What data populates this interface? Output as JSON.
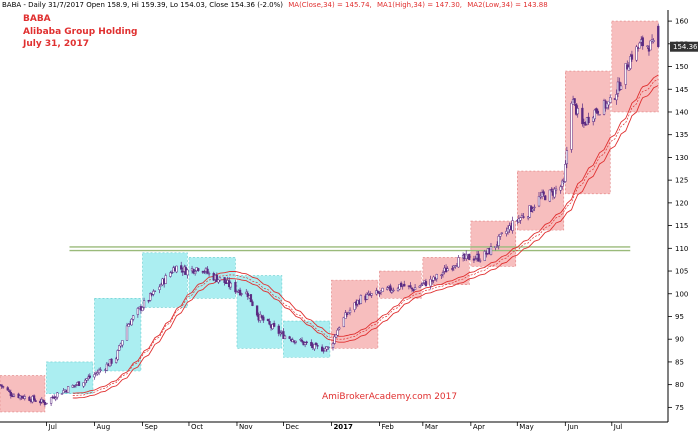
{
  "header": {
    "prefix": "BABA - Daily 31/7/2017 Open 158.9, Hi 159.39, Lo 154.03, Close 154.36 (-2.0%)",
    "ma_close": "MA(Close,34) = 145.74,",
    "ma_high": "MA1(High,34) = 147.30,",
    "ma_low": "MA2(Low,34) = 143.88"
  },
  "title_block": {
    "ticker": "BABA",
    "company": "Alibaba Group Holding",
    "date": "July 31, 2017"
  },
  "watermark": "AmiBrokerAcademy.com  2017",
  "last_price_label": "154.36",
  "colors": {
    "candle": "#5a2a82",
    "cyan_box": "#8fe8ec",
    "pink_box": "#f4a8a8",
    "ma_red": "#e03030",
    "resistance": "#9aba7a",
    "header_red": "#e03030"
  },
  "chart_data": {
    "type": "candlestick",
    "title": "BABA",
    "x_tick_labels": [
      "Jul",
      "Aug",
      "Sep",
      "Oct",
      "Nov",
      "Dec",
      "2017",
      "Feb",
      "Mar",
      "Apr",
      "May",
      "Jun",
      "Jul"
    ],
    "x_tick_dates": [
      "2016-07-01",
      "2016-08-01",
      "2016-09-01",
      "2016-10-01",
      "2016-11-01",
      "2016-12-01",
      "2017-01-01",
      "2017-02-01",
      "2017-03-01",
      "2017-04-01",
      "2017-05-01",
      "2017-06-01",
      "2017-07-01"
    ],
    "x_range": [
      "2016-06-01",
      "2017-08-05"
    ],
    "y_ticks": [
      75,
      80,
      85,
      90,
      95,
      100,
      105,
      110,
      115,
      120,
      125,
      130,
      135,
      140,
      145,
      150,
      155,
      160
    ],
    "ylim": [
      72,
      162
    ],
    "price_path": [
      [
        "2016-06-01",
        80
      ],
      [
        "2016-06-08",
        78
      ],
      [
        "2016-06-20",
        77
      ],
      [
        "2016-06-30",
        76
      ],
      [
        "2016-07-08",
        78
      ],
      [
        "2016-07-20",
        80
      ],
      [
        "2016-07-31",
        82
      ],
      [
        "2016-08-08",
        84
      ],
      [
        "2016-08-15",
        86
      ],
      [
        "2016-08-22",
        93
      ],
      [
        "2016-08-31",
        97
      ],
      [
        "2016-09-08",
        100
      ],
      [
        "2016-09-15",
        103
      ],
      [
        "2016-09-22",
        106
      ],
      [
        "2016-09-30",
        105
      ],
      [
        "2016-10-08",
        106
      ],
      [
        "2016-10-15",
        104
      ],
      [
        "2016-10-22",
        103
      ],
      [
        "2016-10-31",
        101
      ],
      [
        "2016-11-08",
        100
      ],
      [
        "2016-11-15",
        95
      ],
      [
        "2016-11-22",
        93
      ],
      [
        "2016-11-30",
        91
      ],
      [
        "2016-12-08",
        90
      ],
      [
        "2016-12-15",
        89
      ],
      [
        "2016-12-22",
        88
      ],
      [
        "2016-12-31",
        88
      ],
      [
        "2017-01-06",
        93
      ],
      [
        "2017-01-12",
        96
      ],
      [
        "2017-01-20",
        99
      ],
      [
        "2017-01-31",
        100
      ],
      [
        "2017-02-08",
        101
      ],
      [
        "2017-02-15",
        102
      ],
      [
        "2017-02-22",
        101
      ],
      [
        "2017-02-28",
        102
      ],
      [
        "2017-03-08",
        103
      ],
      [
        "2017-03-15",
        105
      ],
      [
        "2017-03-22",
        107
      ],
      [
        "2017-03-31",
        108
      ],
      [
        "2017-04-08",
        108
      ],
      [
        "2017-04-15",
        110
      ],
      [
        "2017-04-22",
        113
      ],
      [
        "2017-04-30",
        116
      ],
      [
        "2017-05-08",
        118
      ],
      [
        "2017-05-15",
        121
      ],
      [
        "2017-05-22",
        122
      ],
      [
        "2017-05-31",
        124
      ],
      [
        "2017-06-05",
        143
      ],
      [
        "2017-06-12",
        137
      ],
      [
        "2017-06-19",
        140
      ],
      [
        "2017-06-30",
        142
      ],
      [
        "2017-07-06",
        146
      ],
      [
        "2017-07-13",
        152
      ],
      [
        "2017-07-20",
        155
      ],
      [
        "2017-07-31",
        154.36
      ]
    ],
    "range_boxes": [
      {
        "color": "pink",
        "start": "2016-06-01",
        "end": "2016-06-30",
        "low": 74,
        "high": 82
      },
      {
        "color": "cyan",
        "start": "2016-07-01",
        "end": "2016-07-31",
        "low": 78,
        "high": 85
      },
      {
        "color": "cyan",
        "start": "2016-08-01",
        "end": "2016-08-31",
        "low": 83,
        "high": 99
      },
      {
        "color": "cyan",
        "start": "2016-09-01",
        "end": "2016-09-30",
        "low": 97,
        "high": 109
      },
      {
        "color": "cyan",
        "start": "2016-10-01",
        "end": "2016-10-31",
        "low": 99,
        "high": 108
      },
      {
        "color": "cyan",
        "start": "2016-11-01",
        "end": "2016-11-30",
        "low": 88,
        "high": 104
      },
      {
        "color": "cyan",
        "start": "2016-12-01",
        "end": "2016-12-31",
        "low": 86,
        "high": 94
      },
      {
        "color": "pink",
        "start": "2017-01-01",
        "end": "2017-01-31",
        "low": 88,
        "high": 103
      },
      {
        "color": "pink",
        "start": "2017-02-01",
        "end": "2017-02-28",
        "low": 99,
        "high": 105
      },
      {
        "color": "pink",
        "start": "2017-03-01",
        "end": "2017-03-31",
        "low": 102,
        "high": 108
      },
      {
        "color": "pink",
        "start": "2017-04-01",
        "end": "2017-04-30",
        "low": 106,
        "high": 116
      },
      {
        "color": "pink",
        "start": "2017-05-01",
        "end": "2017-05-31",
        "low": 114,
        "high": 127
      },
      {
        "color": "pink",
        "start": "2017-06-01",
        "end": "2017-06-30",
        "low": 122,
        "high": 149
      },
      {
        "color": "pink",
        "start": "2017-07-01",
        "end": "2017-07-31",
        "low": 140,
        "high": 160
      }
    ],
    "resistance_levels": [
      109.5,
      110.3
    ],
    "moving_average_period": 34,
    "grid": false
  }
}
